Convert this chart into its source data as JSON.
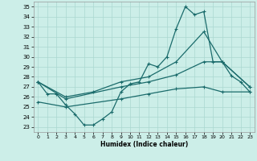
{
  "xlabel": "Humidex (Indice chaleur)",
  "bg_color": "#cceee8",
  "line_color": "#1a6b6b",
  "grid_color": "#aad8d0",
  "xlim": [
    -0.5,
    23.5
  ],
  "ylim": [
    22.5,
    35.5
  ],
  "xticks": [
    0,
    1,
    2,
    3,
    4,
    5,
    6,
    7,
    8,
    9,
    10,
    11,
    12,
    13,
    14,
    15,
    16,
    17,
    18,
    19,
    20,
    21,
    22,
    23
  ],
  "yticks": [
    23,
    24,
    25,
    26,
    27,
    28,
    29,
    30,
    31,
    32,
    33,
    34,
    35
  ],
  "line1_x": [
    0,
    1,
    2,
    3,
    4,
    5,
    6,
    7,
    8,
    9,
    10,
    11,
    12,
    13,
    14,
    15,
    16,
    17,
    18,
    19,
    20,
    21,
    22,
    23
  ],
  "line1_y": [
    27.5,
    26.3,
    26.3,
    25.2,
    24.3,
    23.2,
    23.2,
    23.8,
    24.5,
    26.5,
    27.3,
    27.5,
    29.3,
    29.0,
    30.0,
    32.8,
    35.0,
    34.2,
    34.5,
    29.5,
    29.5,
    28.1,
    27.5,
    26.5
  ],
  "line2_x": [
    0,
    3,
    6,
    9,
    12,
    15,
    18,
    20,
    23
  ],
  "line2_y": [
    27.5,
    26.0,
    26.5,
    27.5,
    28.0,
    29.5,
    32.5,
    29.5,
    27.0
  ],
  "line3_x": [
    0,
    3,
    9,
    12,
    15,
    18,
    20,
    23
  ],
  "line3_y": [
    27.5,
    25.8,
    27.0,
    27.5,
    28.2,
    29.5,
    29.5,
    27.0
  ],
  "line4_x": [
    0,
    3,
    9,
    12,
    15,
    18,
    20,
    23
  ],
  "line4_y": [
    25.5,
    25.0,
    25.8,
    26.3,
    26.8,
    27.0,
    26.5,
    26.5
  ]
}
